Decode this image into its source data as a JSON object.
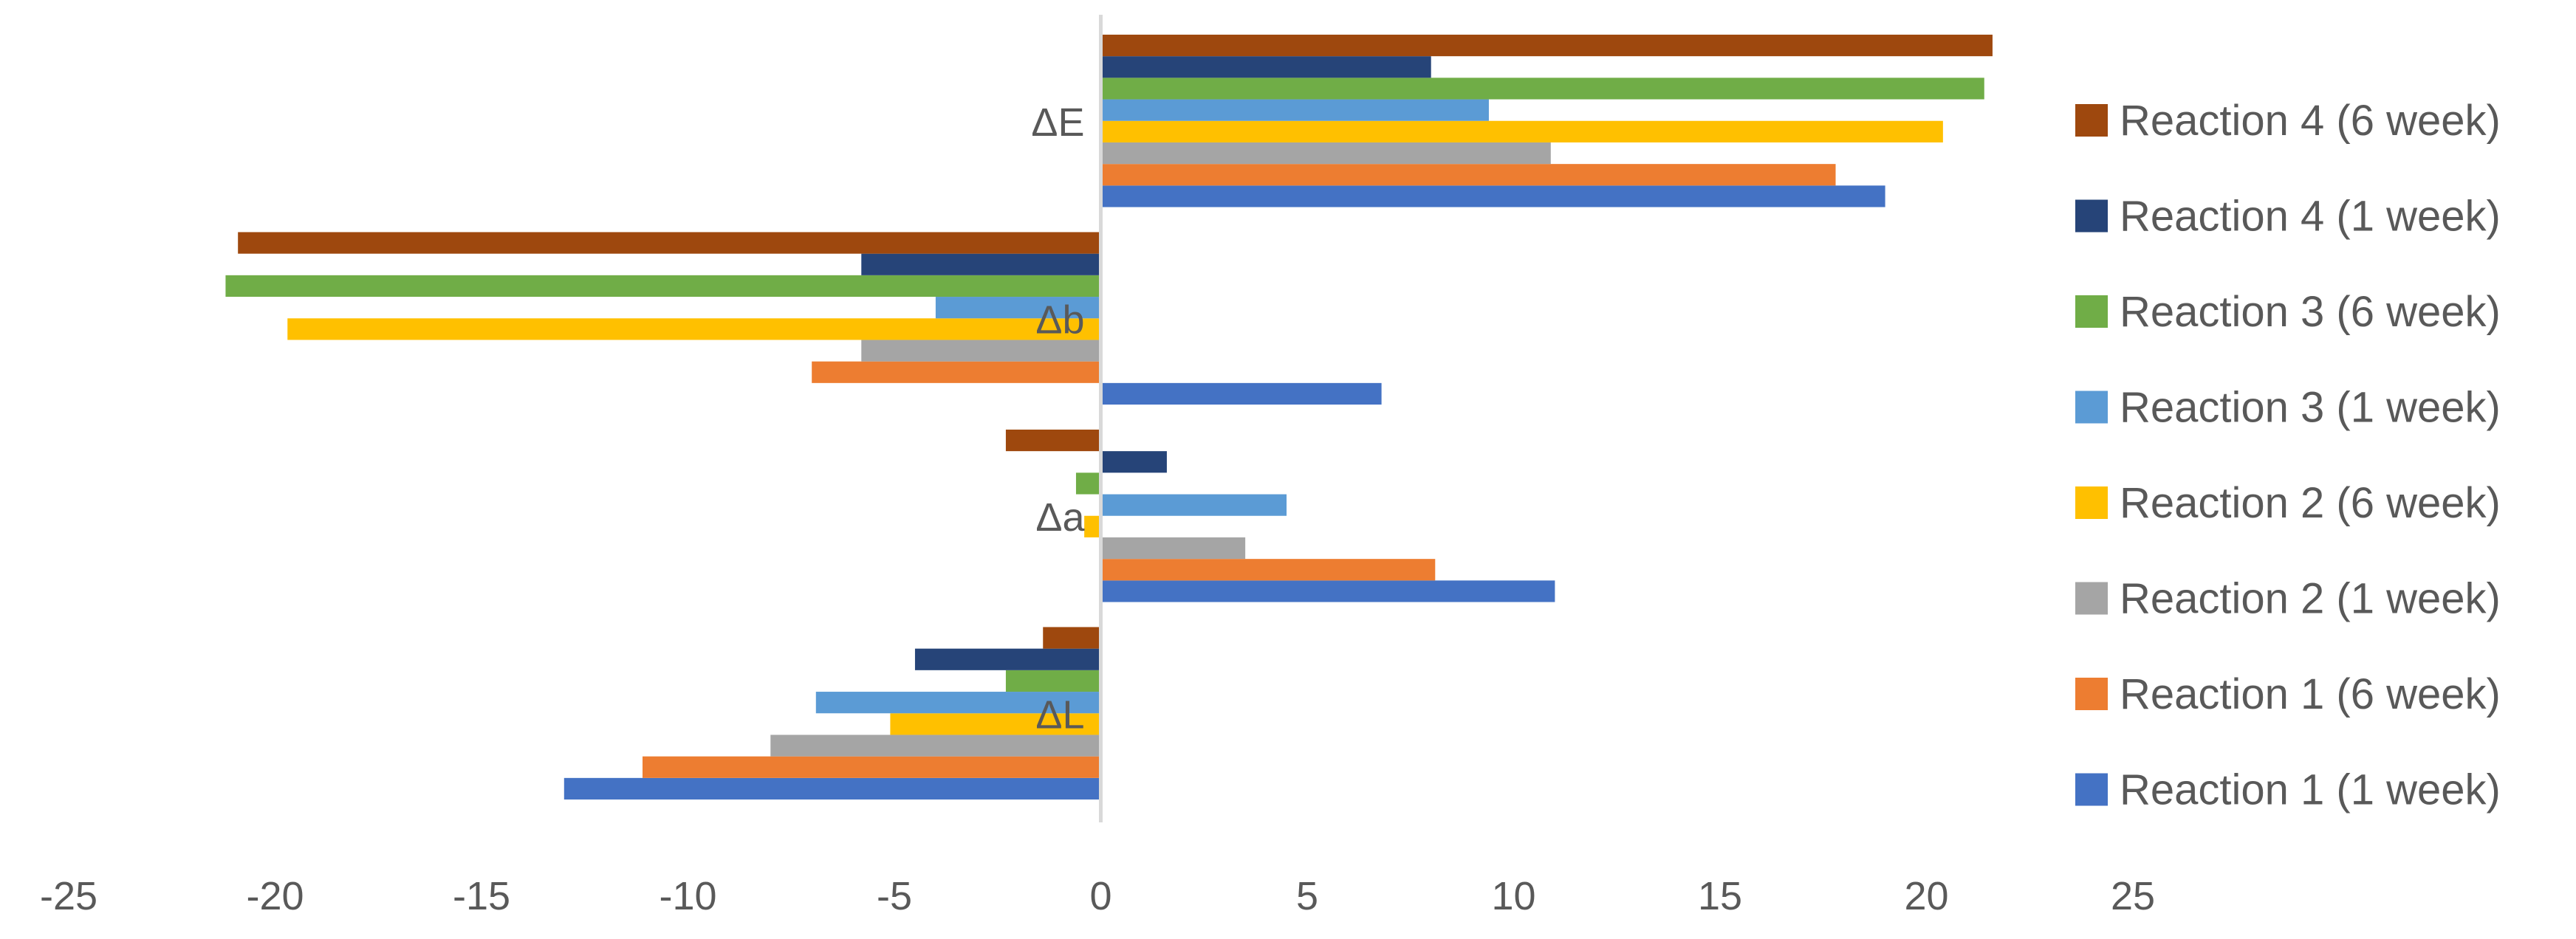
{
  "chart_data": {
    "type": "bar",
    "orientation": "horizontal",
    "title": "",
    "xlabel": "",
    "ylabel": "",
    "xlim": [
      -25,
      25
    ],
    "x_ticks": [
      -25,
      -20,
      -15,
      -10,
      -5,
      0,
      5,
      10,
      15,
      20,
      25
    ],
    "grid": false,
    "legend_position": "right",
    "categories": [
      "ΔL",
      "Δa",
      "Δb",
      "ΔE"
    ],
    "series": [
      {
        "name": "Reaction 1 (1 week)",
        "color": "#4472C4",
        "values": [
          -13.0,
          11.0,
          6.8,
          19.0
        ]
      },
      {
        "name": "Reaction 1 (6 week)",
        "color": "#ED7D31",
        "values": [
          -11.1,
          8.1,
          -7.0,
          17.8
        ]
      },
      {
        "name": "Reaction 2 (1 week)",
        "color": "#A5A5A5",
        "values": [
          -8.0,
          3.5,
          -5.8,
          10.9
        ]
      },
      {
        "name": "Reaction 2 (6 week)",
        "color": "#FFC000",
        "values": [
          -5.1,
          -0.4,
          -19.7,
          20.4
        ]
      },
      {
        "name": "Reaction 3 (1 week)",
        "color": "#5B9BD5",
        "values": [
          -6.9,
          4.5,
          -4.0,
          9.4
        ]
      },
      {
        "name": "Reaction 3 (6 week)",
        "color": "#70AD47",
        "values": [
          -2.3,
          -0.6,
          -21.2,
          21.4
        ]
      },
      {
        "name": "Reaction 4 (1 week)",
        "color": "#264478",
        "values": [
          -4.5,
          1.6,
          -5.8,
          8.0
        ]
      },
      {
        "name": "Reaction 4 (6 week)",
        "color": "#9E480E",
        "values": [
          -1.4,
          -2.3,
          -20.9,
          21.6
        ]
      }
    ]
  }
}
